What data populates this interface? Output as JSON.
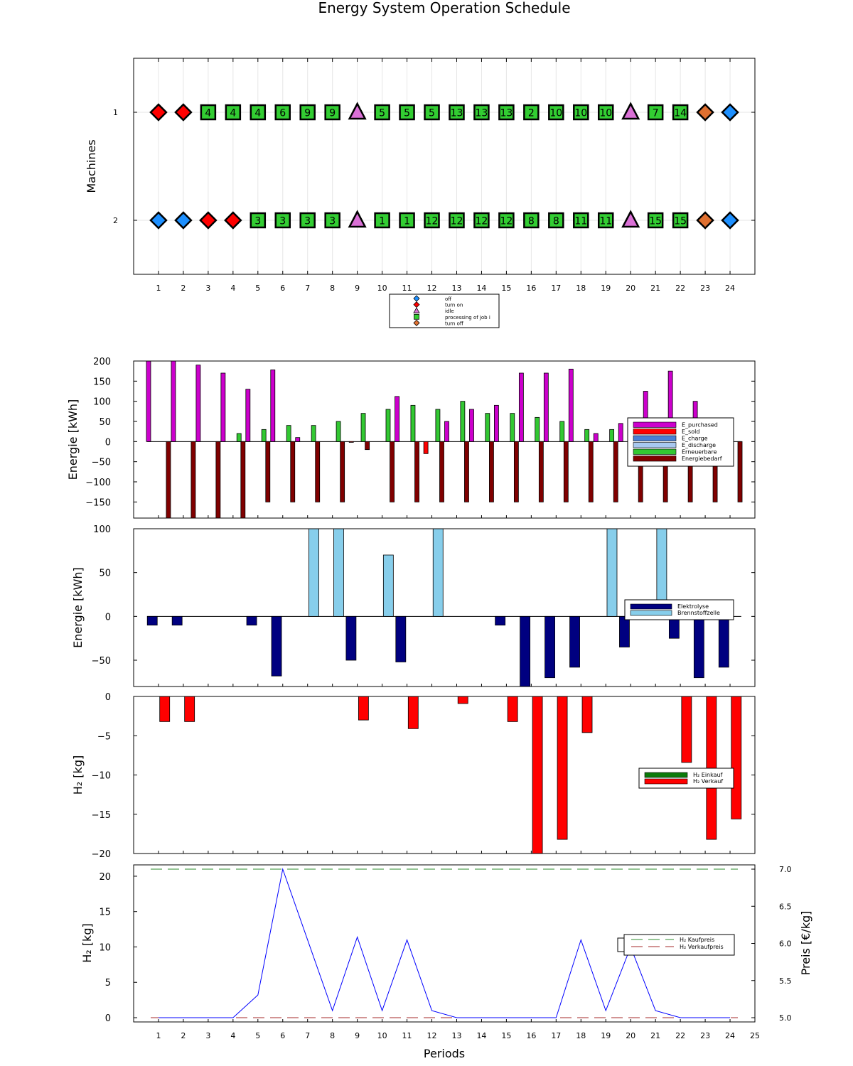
{
  "title": "Energy System Operation Schedule",
  "periods_label": "Periods",
  "chart_data": [
    {
      "id": "schedule",
      "type": "scatter",
      "ylabel": "Machines",
      "yticks": [
        "1",
        "2"
      ],
      "x": [
        1,
        2,
        3,
        4,
        5,
        6,
        7,
        8,
        9,
        10,
        11,
        12,
        13,
        14,
        15,
        16,
        17,
        18,
        19,
        20,
        21,
        22,
        23,
        24
      ],
      "xlim": [
        0,
        25
      ],
      "legend": {
        "placement": "bottom-center",
        "entries": [
          {
            "key": "off",
            "label": "off",
            "marker": "diamond",
            "color": "#1e90ff"
          },
          {
            "key": "on",
            "label": "turn on",
            "marker": "diamond",
            "color": "#ff0000"
          },
          {
            "key": "idle",
            "label": "idle",
            "marker": "triangle",
            "color": "#da70d6"
          },
          {
            "key": "proc",
            "label": "processing of job i",
            "marker": "square",
            "color": "#32cd32"
          },
          {
            "key": "toff",
            "label": "turn off",
            "marker": "diamond",
            "color": "#e07030"
          }
        ]
      },
      "machines": [
        {
          "name": "1",
          "states": [
            "on",
            "on",
            "proc",
            "proc",
            "proc",
            "proc",
            "proc",
            "proc",
            "idle",
            "proc",
            "proc",
            "proc",
            "proc",
            "proc",
            "proc",
            "proc",
            "proc",
            "proc",
            "proc",
            "idle",
            "proc",
            "proc",
            "toff",
            "off"
          ],
          "jobs": [
            "",
            "",
            "4",
            "4",
            "4",
            "6",
            "9",
            "9",
            "",
            "5",
            "5",
            "5",
            "13",
            "13",
            "13",
            "2",
            "10",
            "10",
            "10",
            "",
            "7",
            "14",
            "",
            ""
          ]
        },
        {
          "name": "2",
          "states": [
            "off",
            "off",
            "on",
            "on",
            "proc",
            "proc",
            "proc",
            "proc",
            "idle",
            "proc",
            "proc",
            "proc",
            "proc",
            "proc",
            "proc",
            "proc",
            "proc",
            "proc",
            "proc",
            "idle",
            "proc",
            "proc",
            "toff",
            "off"
          ],
          "jobs": [
            "",
            "",
            "",
            "",
            "3",
            "3",
            "3",
            "3",
            "",
            "1",
            "1",
            "12",
            "12",
            "12",
            "12",
            "8",
            "8",
            "11",
            "11",
            "",
            "15",
            "15",
            "",
            ""
          ]
        }
      ]
    },
    {
      "id": "energy",
      "type": "bar",
      "ylabel": "Energie [kWh]",
      "ylim": [
        -190,
        200
      ],
      "yticks": [
        200,
        150,
        100,
        50,
        0,
        -50,
        -100,
        -150
      ],
      "legend_placement": "right",
      "series": [
        {
          "name": "E_purchased",
          "color": "#cc00cc",
          "values": [
            200,
            200,
            190,
            170,
            130,
            178,
            10,
            0,
            0,
            0,
            112,
            0,
            50,
            80,
            90,
            170,
            170,
            180,
            20,
            45,
            125,
            175,
            100,
            0
          ]
        },
        {
          "name": "E_sold",
          "color": "#ff0000",
          "values": [
            0,
            0,
            0,
            0,
            0,
            0,
            0,
            0,
            -2,
            0,
            0,
            -30,
            0,
            0,
            0,
            0,
            0,
            0,
            0,
            0,
            0,
            0,
            0,
            0
          ]
        },
        {
          "name": "E_charge",
          "color": "#4a7fd4",
          "values": [
            0,
            0,
            0,
            0,
            0,
            0,
            0,
            0,
            0,
            0,
            0,
            0,
            0,
            0,
            0,
            0,
            0,
            0,
            0,
            0,
            0,
            0,
            0,
            0
          ]
        },
        {
          "name": "E_discharge",
          "color": "#a8c8f0",
          "values": [
            0,
            0,
            0,
            0,
            0,
            0,
            0,
            0,
            0,
            0,
            0,
            0,
            0,
            0,
            0,
            0,
            0,
            0,
            0,
            0,
            0,
            0,
            0,
            0
          ]
        },
        {
          "name": "Erneuerbare",
          "color": "#32c832",
          "values": [
            0,
            0,
            0,
            20,
            30,
            40,
            40,
            50,
            70,
            80,
            90,
            80,
            100,
            70,
            70,
            60,
            50,
            30,
            30,
            0,
            0,
            0,
            0,
            0
          ]
        },
        {
          "name": "Energiebedarf",
          "color": "#800000",
          "values": [
            -190,
            -190,
            -190,
            -190,
            -150,
            -150,
            -150,
            -150,
            -20,
            -150,
            -150,
            -150,
            -150,
            -150,
            -150,
            -150,
            -150,
            -150,
            -150,
            -150,
            -150,
            -150,
            -150,
            -150
          ]
        }
      ]
    },
    {
      "id": "h2energy",
      "type": "bar",
      "ylabel": "Energie [kWh]",
      "ylim": [
        -80,
        100
      ],
      "yticks": [
        100,
        50,
        0,
        -50
      ],
      "legend_placement": "right",
      "series": [
        {
          "name": "Elektrolyse",
          "color": "#000080",
          "values": [
            -10,
            -10,
            0,
            0,
            -10,
            -68,
            0,
            0,
            -50,
            0,
            -52,
            0,
            0,
            0,
            -10,
            -80,
            -70,
            -58,
            0,
            -35,
            0,
            -25,
            -70,
            -58
          ]
        },
        {
          "name": "Brennstoffzelle",
          "color": "#87ceeb",
          "values": [
            0,
            0,
            0,
            0,
            0,
            0,
            100,
            100,
            0,
            70,
            0,
            100,
            0,
            0,
            0,
            0,
            0,
            0,
            100,
            0,
            100,
            0,
            0,
            0
          ]
        }
      ]
    },
    {
      "id": "h2trade",
      "type": "bar",
      "ylabel": "H₂ [kg]",
      "ylim": [
        -20,
        0
      ],
      "yticks": [
        0,
        -5,
        -10,
        -15,
        -20
      ],
      "legend_placement": "right",
      "series": [
        {
          "name": "H₂ Einkauf",
          "color": "#0a7a0a",
          "values": [
            0,
            0,
            0,
            0,
            0,
            0,
            0,
            0,
            0,
            0,
            0,
            0,
            0,
            0,
            0,
            0,
            0,
            0,
            0,
            0,
            0,
            0,
            0,
            0
          ]
        },
        {
          "name": "H₂ Verkauf",
          "color": "#ff0000",
          "values": [
            -3.2,
            -3.2,
            0,
            0,
            0,
            0,
            0,
            0,
            -3.0,
            0,
            -4.1,
            0,
            -0.9,
            0,
            -3.2,
            -20,
            -18.2,
            -4.6,
            0,
            0,
            0,
            -8.4,
            -18.2,
            -15.6
          ]
        }
      ]
    },
    {
      "id": "storage",
      "type": "line",
      "xlabel": "Periods",
      "ylabel": "H₂ [kg]",
      "y2label": "Preis [€/kg]",
      "ylim": [
        0,
        21
      ],
      "yticks": [
        0,
        5,
        10,
        15,
        20
      ],
      "y2lim": [
        5,
        7
      ],
      "y2ticks": [
        "5.0",
        "5.5",
        "6.0",
        "6.5",
        "7.0"
      ],
      "xticks": [
        "1",
        "2",
        "3",
        "4",
        "5",
        "6",
        "7",
        "8",
        "9",
        "10",
        "11",
        "12",
        "13",
        "14",
        "15",
        "16",
        "17",
        "18",
        "19",
        "20",
        "21",
        "22",
        "23",
        "24",
        "25"
      ],
      "legend_placement": "right",
      "series": [
        {
          "name": "",
          "color": "#0000ff",
          "x": [
            1,
            2,
            3,
            4,
            5,
            6,
            7,
            8,
            9,
            10,
            11,
            12,
            13,
            14,
            15,
            16,
            17,
            18,
            19,
            20,
            21,
            22,
            23,
            24
          ],
          "values": [
            0,
            0,
            0,
            0,
            3.2,
            21,
            11,
            1,
            11.4,
            1,
            11,
            1,
            0,
            0,
            0,
            0,
            0,
            11,
            1,
            10,
            1,
            0,
            0,
            0
          ]
        },
        {
          "name": "H₂ Kaufpreis",
          "color": "#2e8b2e",
          "axis": "right",
          "dashed": true,
          "constant": 7.0
        },
        {
          "name": "H₂ Verkaufpreis",
          "color": "#a52a2a",
          "axis": "right",
          "dashed": true,
          "constant": 5.0
        }
      ]
    }
  ]
}
